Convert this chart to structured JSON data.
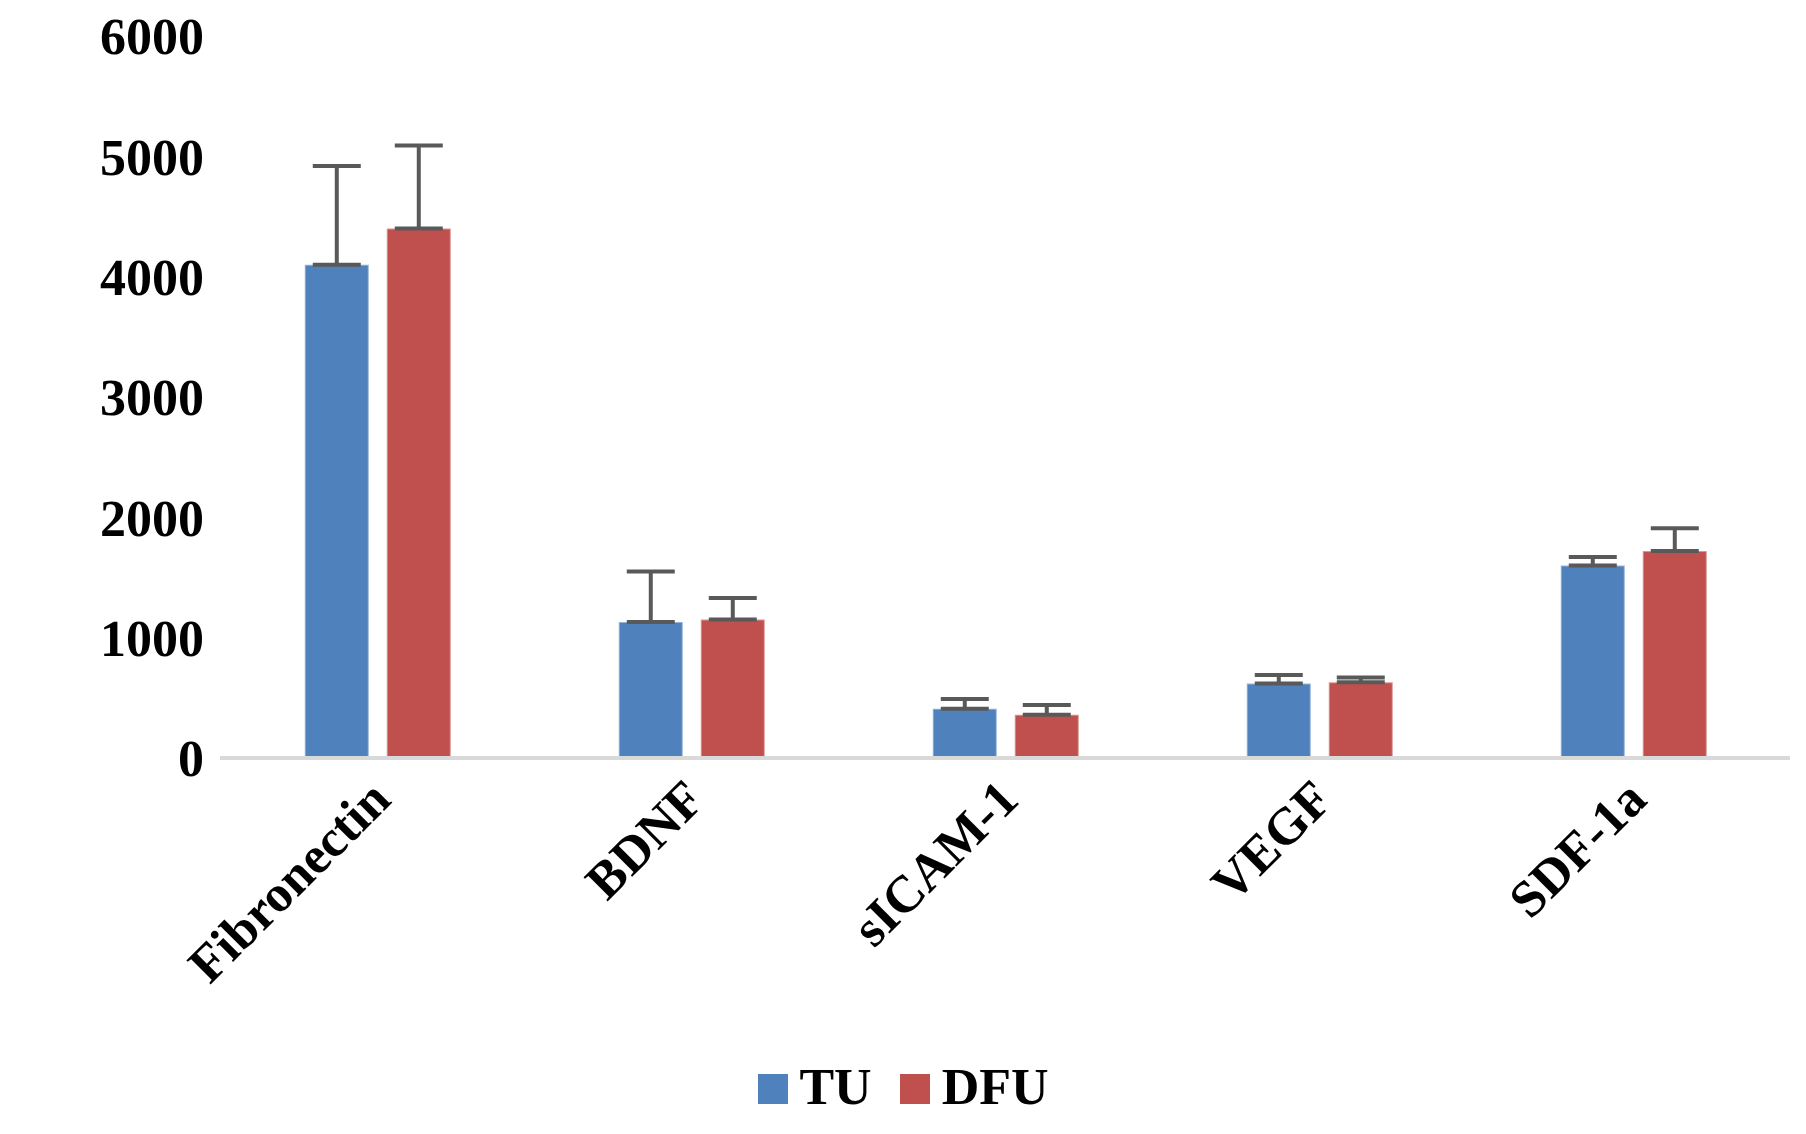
{
  "chart_data": {
    "type": "bar",
    "categories": [
      "Fibronectin",
      "BDNF",
      "sICAM-1",
      "VEGF",
      "SDF-1a"
    ],
    "series": [
      {
        "name": "TU",
        "color": "#4f81bd",
        "values": [
          4100,
          1130,
          410,
          620,
          1600
        ],
        "errors": [
          [
            4100,
            4920
          ],
          [
            1130,
            1550
          ],
          [
            410,
            490
          ],
          [
            620,
            690
          ],
          [
            1600,
            1670
          ]
        ]
      },
      {
        "name": "DFU",
        "color": "#c0504d",
        "values": [
          4400,
          1150,
          360,
          630,
          1720
        ],
        "errors": [
          [
            4400,
            5090
          ],
          [
            1150,
            1330
          ],
          [
            360,
            440
          ],
          [
            630,
            670
          ],
          [
            1720,
            1910
          ]
        ]
      }
    ],
    "ylim": [
      0,
      6000
    ],
    "yticks": [
      0,
      1000,
      2000,
      3000,
      4000,
      5000,
      6000
    ],
    "grid": false,
    "legend": "bottom"
  }
}
